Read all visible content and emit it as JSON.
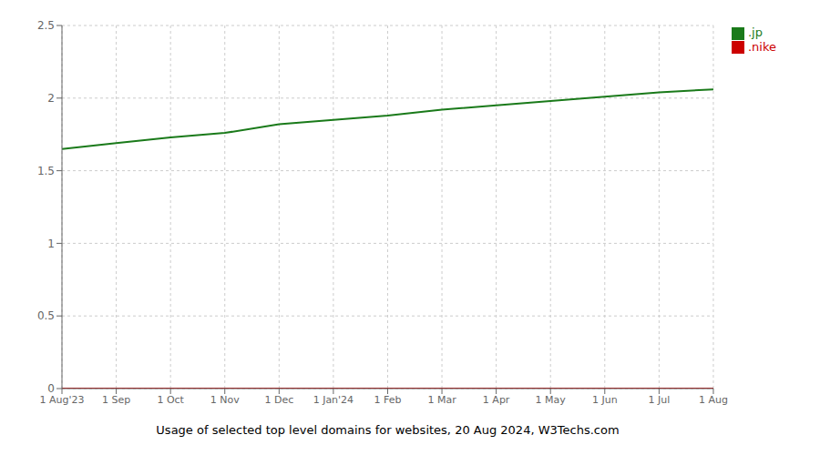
{
  "chart_data": {
    "type": "line",
    "xlabel": "Usage of selected top level domains for websites, 20 Aug 2024, W3Techs.com",
    "categories": [
      "1 Aug'23",
      "1 Sep",
      "1 Oct",
      "1 Nov",
      "1 Dec",
      "1 Jan'24",
      "1 Feb",
      "1 Mar",
      "1 Apr",
      "1 May",
      "1 Jun",
      "1 Jul",
      "1 Aug"
    ],
    "series": [
      {
        "name": ".jp",
        "color": "#1a7a1a",
        "values": [
          1.65,
          1.69,
          1.73,
          1.76,
          1.82,
          1.85,
          1.88,
          1.92,
          1.95,
          1.98,
          2.01,
          2.04,
          2.06
        ]
      },
      {
        "name": ".nike",
        "color": "#cc0000",
        "values": [
          0.0,
          0.0,
          0.0,
          0.0,
          0.0,
          0.0,
          0.0,
          0.0,
          0.0,
          0.0,
          0.0,
          0.0,
          0.0
        ]
      }
    ],
    "ylim": [
      0,
      2.5
    ],
    "yticks": [
      0,
      0.5,
      1,
      1.5,
      2,
      2.5
    ],
    "grid": true,
    "legend": "right"
  }
}
